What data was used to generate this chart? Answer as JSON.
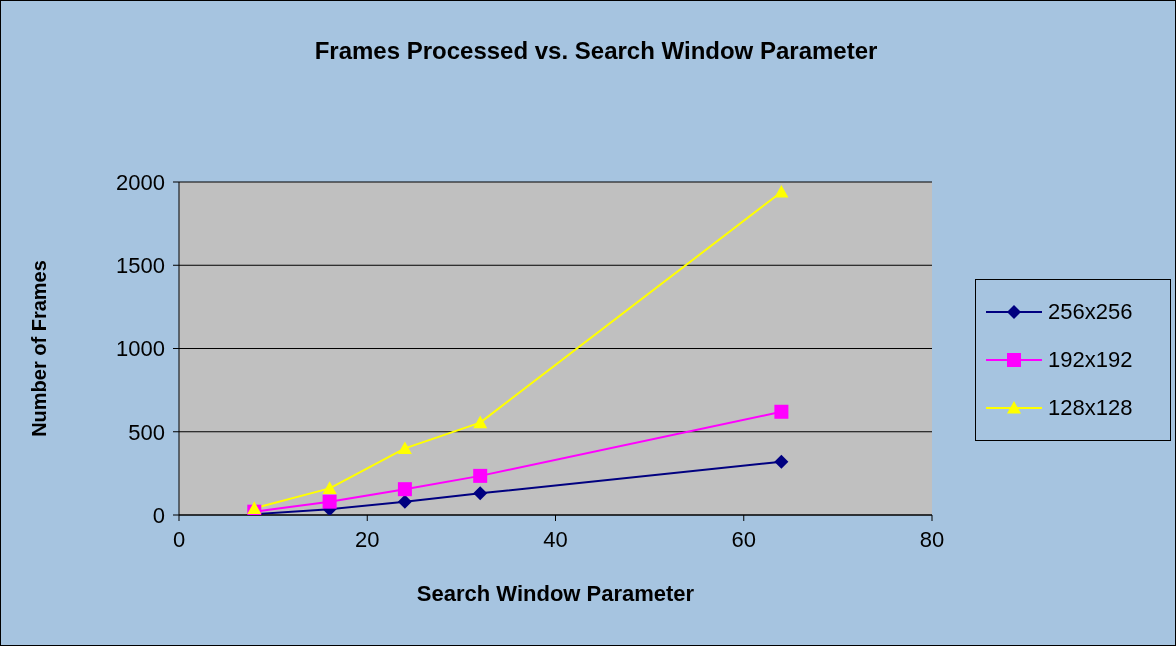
{
  "chart_data": {
    "type": "line",
    "title": "Frames Processed vs. Search Window Parameter",
    "xlabel": "Search Window Parameter",
    "ylabel": "Number of Frames",
    "x": [
      8,
      16,
      24,
      32,
      64
    ],
    "series": [
      {
        "name": "256x256",
        "color": "#000080",
        "marker": "diamond",
        "values": [
          5,
          35,
          80,
          130,
          320
        ]
      },
      {
        "name": "192x192",
        "color": "#ff00ff",
        "marker": "square",
        "values": [
          20,
          80,
          155,
          235,
          620
        ]
      },
      {
        "name": "128x128",
        "color": "#ffff00",
        "marker": "triangle",
        "values": [
          40,
          160,
          400,
          555,
          1940
        ]
      }
    ],
    "xlim": [
      0,
      80
    ],
    "xticks": [
      0,
      20,
      40,
      60,
      80
    ],
    "ylim": [
      0,
      2000
    ],
    "yticks": [
      0,
      500,
      1000,
      1500,
      2000
    ],
    "grid": "y",
    "legend": "right"
  }
}
